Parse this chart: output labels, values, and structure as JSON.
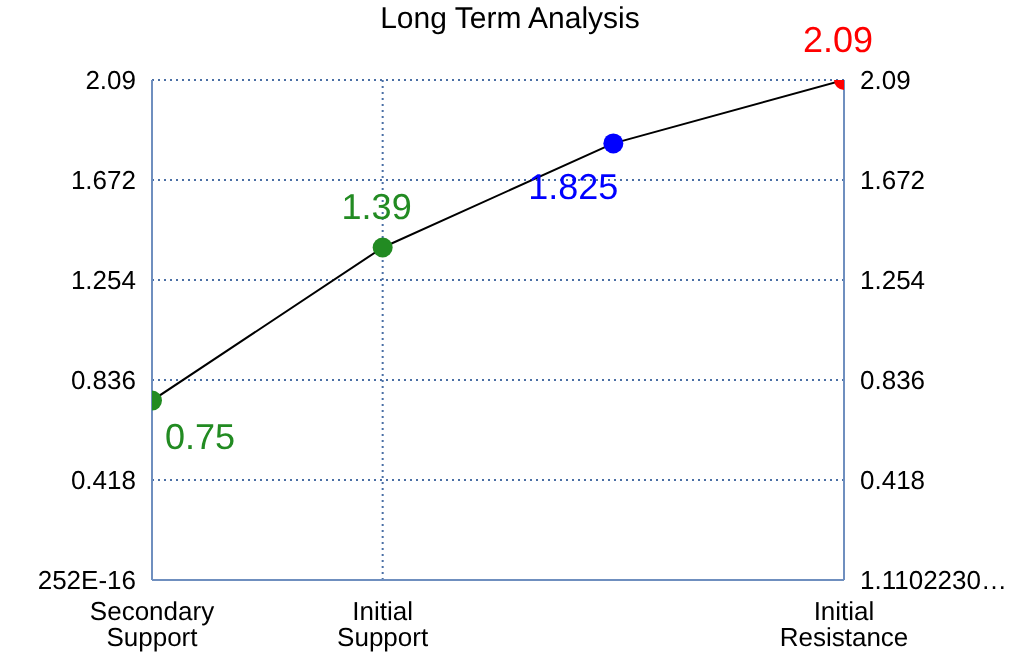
{
  "chart_data": {
    "type": "line",
    "title": "Long Term Analysis",
    "categories": [
      "Secondary Support",
      "Initial Support",
      null,
      "Initial Resistance"
    ],
    "series": [
      {
        "color": "#000000",
        "colors": [
          "#228b22",
          "#228b22",
          "#0000ff",
          "#ff0000"
        ],
        "values": [
          0.75,
          1.39,
          1.825,
          2.09
        ],
        "value_labels": [
          "0.75",
          "1.39",
          "1.825",
          "2.09"
        ]
      }
    ],
    "ylim": [
      0,
      2.09
    ],
    "yticks": [
      {
        "value": 0,
        "label": "252E-16"
      },
      0.418,
      0.836,
      1.254,
      1.672,
      2.09
    ],
    "y2lim": [
      0,
      2.09
    ],
    "y2ticks": [
      {
        "value": 1.110223e-16,
        "label": "1.1102230…"
      },
      0.418,
      0.836,
      1.254,
      1.672,
      2.09
    ],
    "grid": true,
    "marker": "circle",
    "line_style": "solid"
  }
}
